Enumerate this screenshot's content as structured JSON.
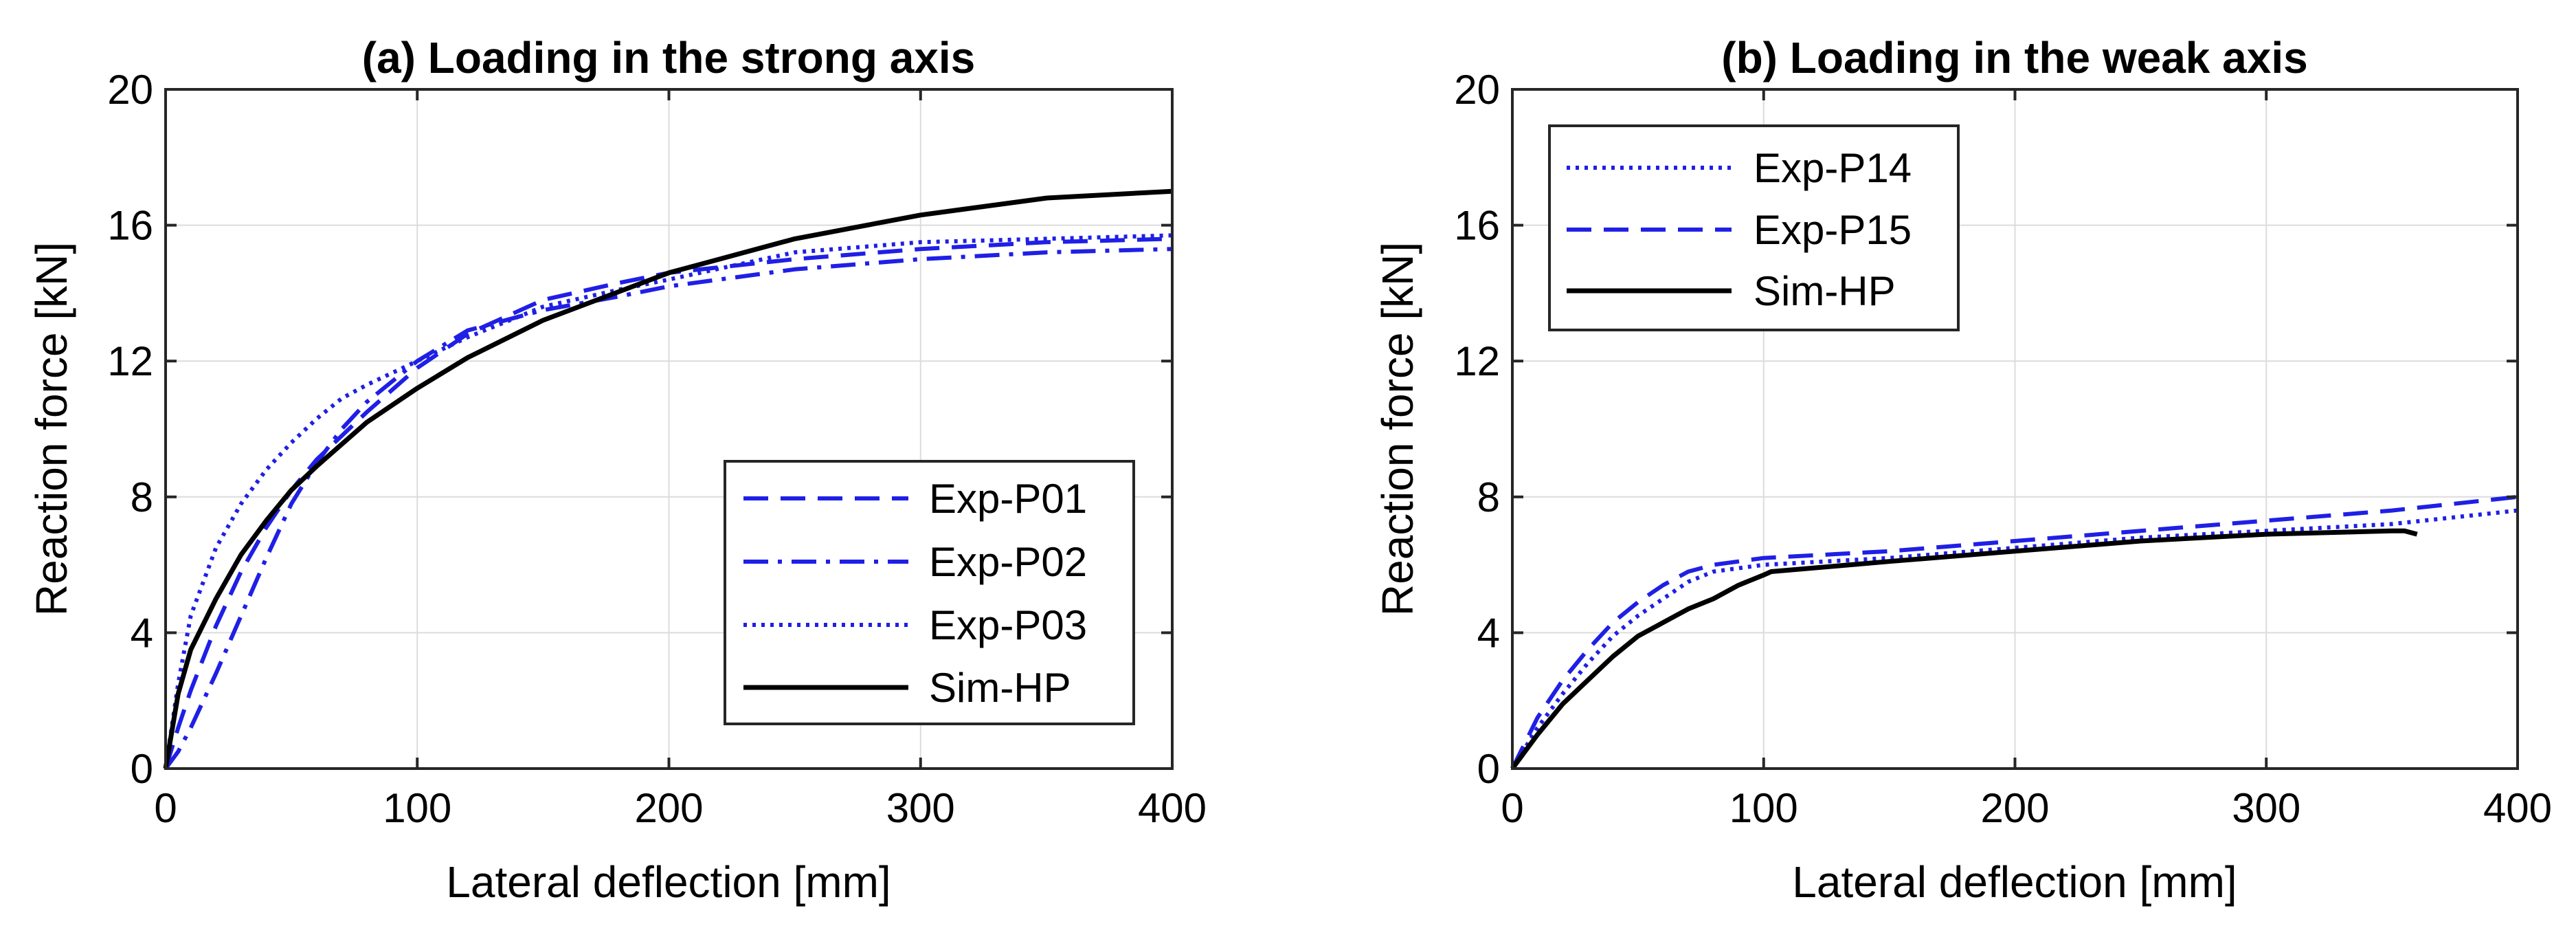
{
  "chart_data": [
    {
      "type": "line",
      "title": "(a) Loading in the strong axis",
      "xlabel": "Lateral deflection [mm]",
      "ylabel": "Reaction force [kN]",
      "xlim": [
        0,
        400
      ],
      "ylim": [
        0,
        20
      ],
      "xticks": [
        0,
        100,
        200,
        300,
        400
      ],
      "yticks": [
        0,
        4,
        8,
        12,
        16,
        20
      ],
      "grid": true,
      "legend_position": "bottom-right",
      "series": [
        {
          "name": "Exp-P01",
          "style": "dashed",
          "color": "#1f1fe6",
          "x": [
            0,
            5,
            10,
            20,
            30,
            40,
            50,
            60,
            70,
            80,
            100,
            120,
            150,
            180,
            200,
            250,
            300,
            350,
            400
          ],
          "y": [
            0,
            1.2,
            2.3,
            4.2,
            5.8,
            7.1,
            8.2,
            9.1,
            9.8,
            10.5,
            11.8,
            12.8,
            13.8,
            14.3,
            14.6,
            15.0,
            15.3,
            15.5,
            15.6
          ]
        },
        {
          "name": "Exp-P02",
          "style": "dashdot",
          "color": "#1f1fe6",
          "x": [
            0,
            5,
            10,
            20,
            30,
            40,
            50,
            60,
            70,
            80,
            100,
            120,
            150,
            180,
            200,
            250,
            300,
            350,
            400
          ],
          "y": [
            0,
            0.5,
            1.2,
            2.8,
            4.5,
            6.2,
            7.8,
            9.0,
            10.0,
            10.8,
            12.0,
            12.9,
            13.5,
            13.9,
            14.2,
            14.7,
            15.0,
            15.2,
            15.3
          ]
        },
        {
          "name": "Exp-P03",
          "style": "dotted",
          "color": "#1f1fe6",
          "x": [
            0,
            5,
            10,
            20,
            30,
            40,
            50,
            60,
            70,
            80,
            100,
            120,
            150,
            180,
            200,
            250,
            300,
            350,
            400
          ],
          "y": [
            0,
            2.5,
            4.5,
            6.5,
            7.8,
            8.8,
            9.6,
            10.3,
            10.9,
            11.3,
            12.0,
            12.7,
            13.6,
            14.1,
            14.4,
            15.2,
            15.5,
            15.6,
            15.7
          ]
        },
        {
          "name": "Sim-HP",
          "style": "solid",
          "color": "#000000",
          "x": [
            0,
            5,
            10,
            20,
            30,
            40,
            50,
            60,
            80,
            100,
            120,
            150,
            200,
            250,
            300,
            350,
            400
          ],
          "y": [
            0,
            2.2,
            3.5,
            5.0,
            6.3,
            7.3,
            8.2,
            8.9,
            10.2,
            11.2,
            12.1,
            13.2,
            14.6,
            15.6,
            16.3,
            16.8,
            17.0
          ]
        }
      ]
    },
    {
      "type": "line",
      "title": "(b) Loading in the weak axis",
      "xlabel": "Lateral deflection [mm]",
      "ylabel": "Reaction force [kN]",
      "xlim": [
        0,
        400
      ],
      "ylim": [
        0,
        20
      ],
      "xticks": [
        0,
        100,
        200,
        300,
        400
      ],
      "yticks": [
        0,
        4,
        8,
        12,
        16,
        20
      ],
      "grid": true,
      "legend_position": "top-left",
      "series": [
        {
          "name": "Exp-P14",
          "style": "dotted",
          "color": "#1f1fe6",
          "x": [
            0,
            10,
            20,
            30,
            40,
            50,
            60,
            70,
            80,
            100,
            150,
            200,
            250,
            300,
            350,
            400
          ],
          "y": [
            0,
            1.2,
            2.2,
            3.1,
            3.9,
            4.5,
            5.0,
            5.5,
            5.8,
            6.0,
            6.2,
            6.5,
            6.8,
            7.0,
            7.2,
            7.6
          ]
        },
        {
          "name": "Exp-P15",
          "style": "dashed",
          "color": "#1f1fe6",
          "x": [
            0,
            10,
            20,
            30,
            40,
            50,
            60,
            70,
            80,
            100,
            150,
            200,
            250,
            300,
            350,
            400
          ],
          "y": [
            0,
            1.5,
            2.6,
            3.5,
            4.3,
            4.9,
            5.4,
            5.8,
            6.0,
            6.2,
            6.4,
            6.7,
            7.0,
            7.3,
            7.6,
            8.0
          ]
        },
        {
          "name": "Sim-HP",
          "style": "solid",
          "color": "#000000",
          "x": [
            0,
            10,
            20,
            30,
            40,
            50,
            60,
            70,
            80,
            90,
            100,
            103,
            150,
            200,
            250,
            300,
            350,
            355,
            360
          ],
          "y": [
            0,
            1.0,
            1.9,
            2.6,
            3.3,
            3.9,
            4.3,
            4.7,
            5.0,
            5.4,
            5.7,
            5.8,
            6.1,
            6.4,
            6.7,
            6.9,
            7.0,
            7.0,
            6.9
          ]
        }
      ]
    }
  ]
}
